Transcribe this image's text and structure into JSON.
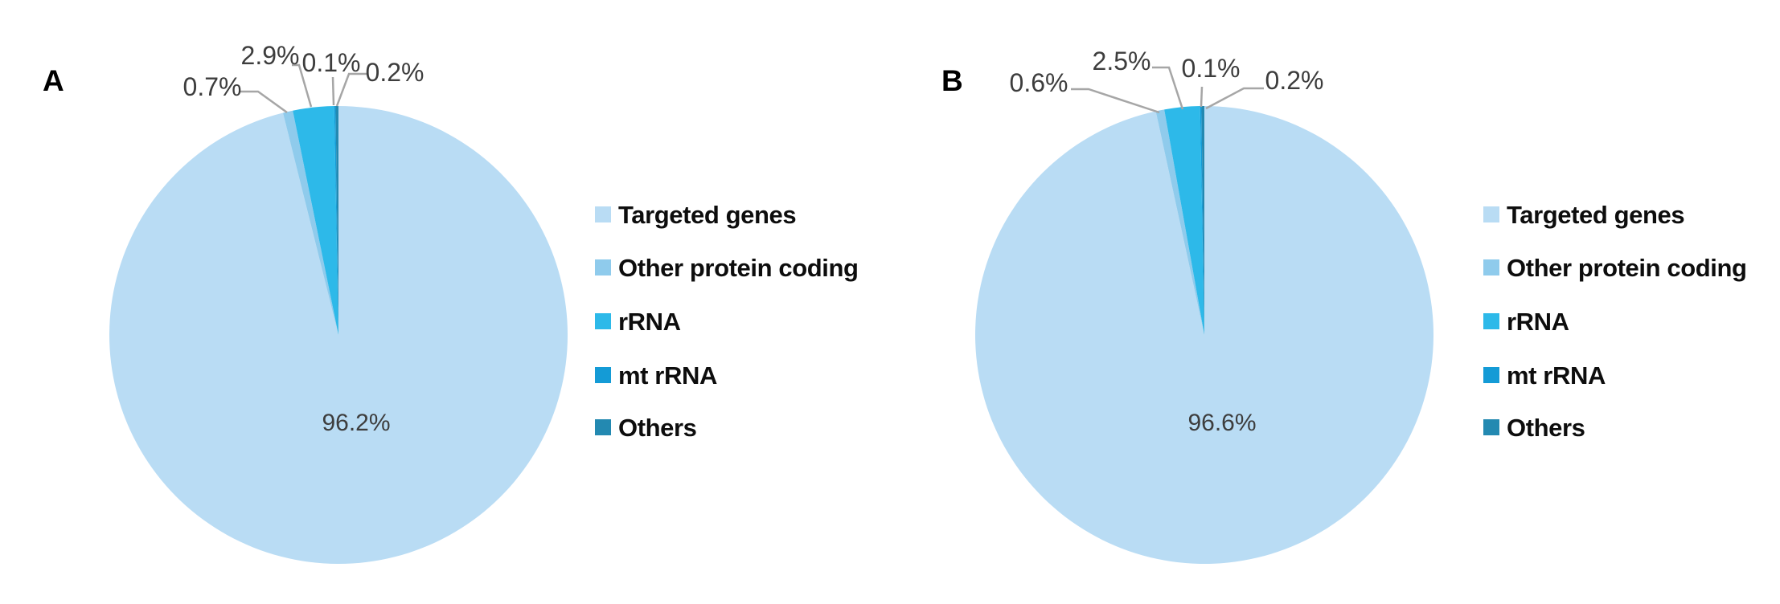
{
  "figure": {
    "background": "#ffffff",
    "leader_line_color": "#a6a6a6",
    "label_text_color": "#3d3d3d"
  },
  "chart_data": [
    {
      "panel_label": "A",
      "type": "pie",
      "categories": [
        "Targeted genes",
        "Other protein coding",
        "rRNA",
        "mt rRNA",
        "Others"
      ],
      "values": [
        96.2,
        0.7,
        2.9,
        0.1,
        0.2
      ],
      "slice_labels": [
        "96.2%",
        "0.7%",
        "2.9%",
        "0.1%",
        "0.2%"
      ],
      "colors": [
        "#b9dcf4",
        "#8fcbec",
        "#2db9e9",
        "#149bd6",
        "#2389b1"
      ],
      "start_angle": "12 o'clock",
      "direction": "clockwise",
      "legend_position": "right",
      "leader_line_color": "#a6a6a6"
    },
    {
      "panel_label": "B",
      "type": "pie",
      "categories": [
        "Targeted genes",
        "Other protein coding",
        "rRNA",
        "mt rRNA",
        "Others"
      ],
      "values": [
        96.6,
        0.6,
        2.5,
        0.1,
        0.2
      ],
      "slice_labels": [
        "96.6%",
        "0.6%",
        "2.5%",
        "0.1%",
        "0.2%"
      ],
      "colors": [
        "#b9dcf4",
        "#8fcbec",
        "#2db9e9",
        "#149bd6",
        "#2389b1"
      ],
      "start_angle": "12 o'clock",
      "direction": "clockwise",
      "legend_position": "right",
      "leader_line_color": "#a6a6a6"
    }
  ]
}
